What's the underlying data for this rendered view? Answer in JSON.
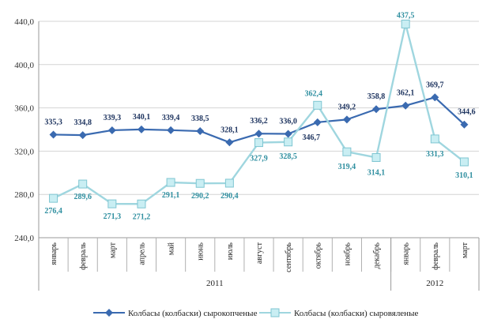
{
  "chart_data": {
    "type": "line",
    "categories": [
      "январь",
      "февраль",
      "март",
      "апрель",
      "май",
      "июнь",
      "июль",
      "август",
      "сентябрь",
      "октябрь",
      "ноябрь",
      "декабрь",
      "январь",
      "февраль",
      "март"
    ],
    "year_groups": [
      {
        "label": "2011",
        "start": 0,
        "end": 11
      },
      {
        "label": "2012",
        "start": 12,
        "end": 14
      }
    ],
    "ylim": [
      240,
      440
    ],
    "yticks": [
      "240,0",
      "280,0",
      "320,0",
      "360,0",
      "400,0",
      "440,0"
    ],
    "grid": true,
    "legend_position": "bottom",
    "series": [
      {
        "name": "Колбасы (колбаски) сырокопченые",
        "color": "#3a6ab0",
        "marker": "diamond",
        "values": [
          335.3,
          334.8,
          339.3,
          340.1,
          339.4,
          338.5,
          328.1,
          336.2,
          336.0,
          346.7,
          349.2,
          358.8,
          362.1,
          369.7,
          344.6
        ],
        "labels": [
          "335,3",
          "334,8",
          "339,3",
          "340,1",
          "339,4",
          "338,5",
          "328,1",
          "336,2",
          "336,0",
          "346,7",
          "349,2",
          "358,8",
          "362,1",
          "369,7",
          "344,6"
        ]
      },
      {
        "name": "Колбасы (колбаски) сыровяленые",
        "color": "#9fd6df",
        "marker": "square",
        "values": [
          276.4,
          289.6,
          271.3,
          271.2,
          291.1,
          290.2,
          290.4,
          327.9,
          328.5,
          362.4,
          319.4,
          314.1,
          437.5,
          331.3,
          310.1
        ],
        "labels": [
          "276,4",
          "289,6",
          "271,3",
          "271,2",
          "291,1",
          "290,2",
          "290,4",
          "327,9",
          "328,5",
          "362,4",
          "319,4",
          "314,1",
          "437,5",
          "331,3",
          "310,1"
        ]
      }
    ]
  }
}
